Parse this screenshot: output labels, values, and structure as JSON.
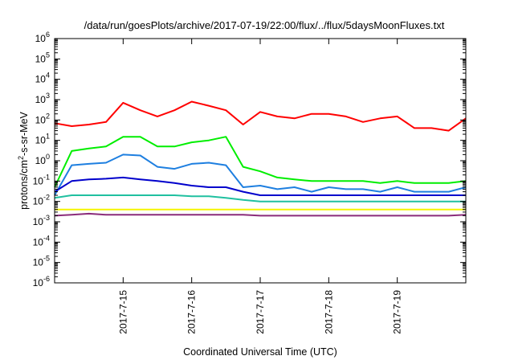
{
  "chart_data": {
    "type": "line",
    "title": "/data/run/goesPlots/archive/2017-07-19/22:00/flux/../flux/5daysMoonFluxes.txt",
    "xlabel": "Coordinated Universal Time (UTC)",
    "ylabel": "protons/cm2-s-sr-MeV",
    "ylabel_parts": {
      "pre": "protons/cm",
      "sup": "2",
      "post": "-s-sr-MeV"
    },
    "y_scale": "log",
    "ylim": [
      1e-06,
      1000000.0
    ],
    "xlim": [
      "2017-07-14",
      "2017-07-20"
    ],
    "grid": false,
    "y_ticks": [
      {
        "base": "10",
        "exp": "-6",
        "value": 1e-06
      },
      {
        "base": "10",
        "exp": "-5",
        "value": 1e-05
      },
      {
        "base": "10",
        "exp": "-4",
        "value": 0.0001
      },
      {
        "base": "10",
        "exp": "-3",
        "value": 0.001
      },
      {
        "base": "10",
        "exp": "-2",
        "value": 0.01
      },
      {
        "base": "10",
        "exp": "-1",
        "value": 0.1
      },
      {
        "base": "10",
        "exp": "0",
        "value": 1
      },
      {
        "base": "10",
        "exp": "1",
        "value": 10
      },
      {
        "base": "10",
        "exp": "2",
        "value": 100
      },
      {
        "base": "10",
        "exp": "3",
        "value": 1000
      },
      {
        "base": "10",
        "exp": "4",
        "value": 10000
      },
      {
        "base": "10",
        "exp": "5",
        "value": 100000
      },
      {
        "base": "10",
        "exp": "6",
        "value": 1000000
      }
    ],
    "x_ticks": [
      "2017-7-15",
      "2017-7-16",
      "2017-7-17",
      "2017-7-18",
      "2017-7-19"
    ],
    "series": [
      {
        "color": "#ff0000",
        "x": [
          "2017-07-14 00:00",
          "2017-07-14 06:00",
          "2017-07-14 12:00",
          "2017-07-14 18:00",
          "2017-07-15 00:00",
          "2017-07-15 06:00",
          "2017-07-15 12:00",
          "2017-07-15 18:00",
          "2017-07-16 00:00",
          "2017-07-16 06:00",
          "2017-07-16 12:00",
          "2017-07-16 18:00",
          "2017-07-17 00:00",
          "2017-07-17 06:00",
          "2017-07-17 12:00",
          "2017-07-17 18:00",
          "2017-07-18 00:00",
          "2017-07-18 06:00",
          "2017-07-18 12:00",
          "2017-07-18 18:00",
          "2017-07-19 00:00",
          "2017-07-19 06:00",
          "2017-07-19 12:00",
          "2017-07-19 18:00",
          "2017-07-20 00:00"
        ],
        "values": [
          70,
          50,
          60,
          80,
          700,
          300,
          150,
          300,
          800,
          500,
          300,
          60,
          250,
          150,
          120,
          200,
          200,
          150,
          80,
          120,
          150,
          40,
          40,
          30,
          120
        ]
      },
      {
        "color": "#00ee00",
        "x": [
          "2017-07-14 00:00",
          "2017-07-14 06:00",
          "2017-07-14 12:00",
          "2017-07-14 18:00",
          "2017-07-15 00:00",
          "2017-07-15 06:00",
          "2017-07-15 12:00",
          "2017-07-15 18:00",
          "2017-07-16 00:00",
          "2017-07-16 06:00",
          "2017-07-16 12:00",
          "2017-07-16 18:00",
          "2017-07-17 00:00",
          "2017-07-17 06:00",
          "2017-07-17 12:00",
          "2017-07-17 18:00",
          "2017-07-18 00:00",
          "2017-07-18 06:00",
          "2017-07-18 12:00",
          "2017-07-18 18:00",
          "2017-07-19 00:00",
          "2017-07-19 06:00",
          "2017-07-19 12:00",
          "2017-07-19 18:00",
          "2017-07-20 00:00"
        ],
        "values": [
          0.05,
          3,
          4,
          5,
          15,
          15,
          5,
          5,
          8,
          10,
          15,
          0.5,
          0.3,
          0.15,
          0.12,
          0.1,
          0.1,
          0.1,
          0.1,
          0.08,
          0.1,
          0.08,
          0.08,
          0.08,
          0.1
        ]
      },
      {
        "color": "#1e7fe0",
        "x": [
          "2017-07-14 00:00",
          "2017-07-14 06:00",
          "2017-07-14 12:00",
          "2017-07-14 18:00",
          "2017-07-15 00:00",
          "2017-07-15 06:00",
          "2017-07-15 12:00",
          "2017-07-15 18:00",
          "2017-07-16 00:00",
          "2017-07-16 06:00",
          "2017-07-16 12:00",
          "2017-07-16 18:00",
          "2017-07-17 00:00",
          "2017-07-17 06:00",
          "2017-07-17 12:00",
          "2017-07-17 18:00",
          "2017-07-18 00:00",
          "2017-07-18 06:00",
          "2017-07-18 12:00",
          "2017-07-18 18:00",
          "2017-07-19 00:00",
          "2017-07-19 06:00",
          "2017-07-19 12:00",
          "2017-07-19 18:00",
          "2017-07-20 00:00"
        ],
        "values": [
          0.02,
          0.6,
          0.7,
          0.8,
          2,
          1.8,
          0.5,
          0.4,
          0.7,
          0.8,
          0.6,
          0.05,
          0.06,
          0.04,
          0.05,
          0.03,
          0.05,
          0.04,
          0.04,
          0.03,
          0.05,
          0.03,
          0.03,
          0.03,
          0.05
        ]
      },
      {
        "color": "#0000cc",
        "x": [
          "2017-07-14 00:00",
          "2017-07-14 06:00",
          "2017-07-14 12:00",
          "2017-07-14 18:00",
          "2017-07-15 00:00",
          "2017-07-15 06:00",
          "2017-07-15 12:00",
          "2017-07-15 18:00",
          "2017-07-16 00:00",
          "2017-07-16 06:00",
          "2017-07-16 12:00",
          "2017-07-16 18:00",
          "2017-07-17 00:00",
          "2017-07-17 06:00",
          "2017-07-17 12:00",
          "2017-07-17 18:00",
          "2017-07-18 00:00",
          "2017-07-18 06:00",
          "2017-07-18 12:00",
          "2017-07-18 18:00",
          "2017-07-19 00:00",
          "2017-07-19 06:00",
          "2017-07-19 12:00",
          "2017-07-19 18:00",
          "2017-07-20 00:00"
        ],
        "values": [
          0.03,
          0.1,
          0.12,
          0.13,
          0.15,
          0.12,
          0.1,
          0.08,
          0.06,
          0.05,
          0.05,
          0.03,
          0.02,
          0.02,
          0.02,
          0.02,
          0.02,
          0.02,
          0.02,
          0.02,
          0.02,
          0.02,
          0.02,
          0.02,
          0.02
        ]
      },
      {
        "color": "#20c0a0",
        "x": [
          "2017-07-14 00:00",
          "2017-07-14 06:00",
          "2017-07-14 12:00",
          "2017-07-14 18:00",
          "2017-07-15 00:00",
          "2017-07-15 06:00",
          "2017-07-15 12:00",
          "2017-07-15 18:00",
          "2017-07-16 00:00",
          "2017-07-16 06:00",
          "2017-07-16 12:00",
          "2017-07-16 18:00",
          "2017-07-17 00:00",
          "2017-07-17 06:00",
          "2017-07-17 12:00",
          "2017-07-17 18:00",
          "2017-07-18 00:00",
          "2017-07-18 06:00",
          "2017-07-18 12:00",
          "2017-07-18 18:00",
          "2017-07-19 00:00",
          "2017-07-19 06:00",
          "2017-07-19 12:00",
          "2017-07-19 18:00",
          "2017-07-20 00:00"
        ],
        "values": [
          0.015,
          0.02,
          0.02,
          0.02,
          0.02,
          0.02,
          0.02,
          0.02,
          0.018,
          0.018,
          0.015,
          0.012,
          0.01,
          0.01,
          0.01,
          0.01,
          0.01,
          0.01,
          0.01,
          0.01,
          0.01,
          0.01,
          0.01,
          0.01,
          0.01
        ]
      },
      {
        "color": "#f5f500",
        "x": [
          "2017-07-14 00:00",
          "2017-07-14 06:00",
          "2017-07-14 12:00",
          "2017-07-14 18:00",
          "2017-07-15 00:00",
          "2017-07-15 06:00",
          "2017-07-15 12:00",
          "2017-07-15 18:00",
          "2017-07-16 00:00",
          "2017-07-16 06:00",
          "2017-07-16 12:00",
          "2017-07-16 18:00",
          "2017-07-17 00:00",
          "2017-07-17 06:00",
          "2017-07-17 12:00",
          "2017-07-17 18:00",
          "2017-07-18 00:00",
          "2017-07-18 06:00",
          "2017-07-18 12:00",
          "2017-07-18 18:00",
          "2017-07-19 00:00",
          "2017-07-19 06:00",
          "2017-07-19 12:00",
          "2017-07-19 18:00",
          "2017-07-20 00:00"
        ],
        "values": [
          0.004,
          0.004,
          0.004,
          0.004,
          0.004,
          0.004,
          0.004,
          0.004,
          0.004,
          0.004,
          0.004,
          0.004,
          0.004,
          0.004,
          0.004,
          0.004,
          0.004,
          0.004,
          0.004,
          0.004,
          0.004,
          0.004,
          0.004,
          0.004,
          0.004
        ]
      },
      {
        "color": "#8b2c7a",
        "x": [
          "2017-07-14 00:00",
          "2017-07-14 06:00",
          "2017-07-14 12:00",
          "2017-07-14 18:00",
          "2017-07-15 00:00",
          "2017-07-15 06:00",
          "2017-07-15 12:00",
          "2017-07-15 18:00",
          "2017-07-16 00:00",
          "2017-07-16 06:00",
          "2017-07-16 12:00",
          "2017-07-16 18:00",
          "2017-07-17 00:00",
          "2017-07-17 06:00",
          "2017-07-17 12:00",
          "2017-07-17 18:00",
          "2017-07-18 00:00",
          "2017-07-18 06:00",
          "2017-07-18 12:00",
          "2017-07-18 18:00",
          "2017-07-19 00:00",
          "2017-07-19 06:00",
          "2017-07-19 12:00",
          "2017-07-19 18:00",
          "2017-07-20 00:00"
        ],
        "values": [
          0.002,
          0.0022,
          0.0025,
          0.0022,
          0.0022,
          0.0022,
          0.0022,
          0.0022,
          0.0022,
          0.0022,
          0.0022,
          0.0022,
          0.002,
          0.002,
          0.002,
          0.002,
          0.002,
          0.002,
          0.002,
          0.002,
          0.002,
          0.002,
          0.002,
          0.002,
          0.0022
        ]
      }
    ]
  }
}
